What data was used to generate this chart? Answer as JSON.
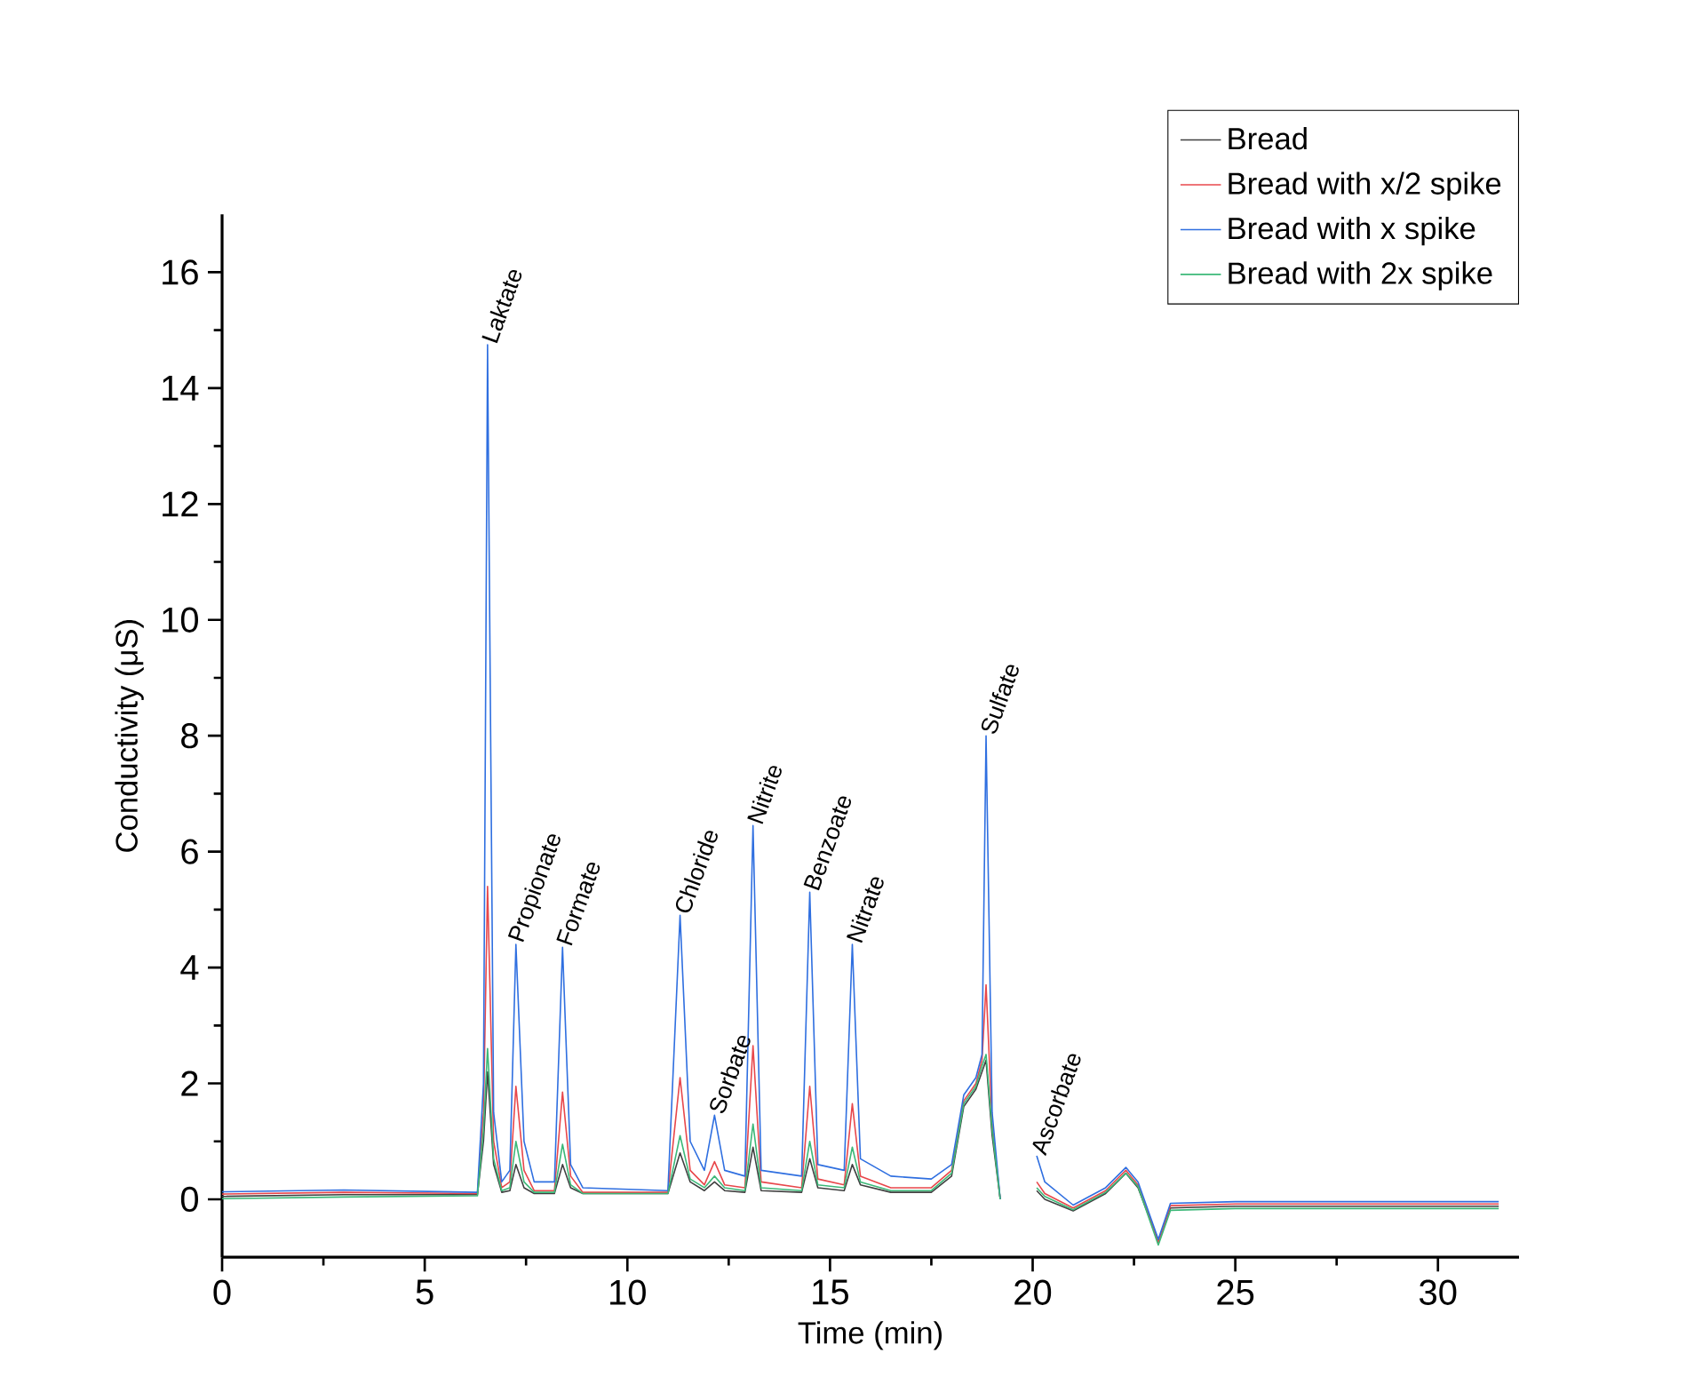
{
  "chart_data": {
    "type": "line",
    "xlabel": "Time (min)",
    "ylabel": "Conductivity (μS)",
    "x": [
      0,
      3,
      6.3,
      6.45,
      6.55,
      6.7,
      6.9,
      7.1,
      7.25,
      7.45,
      7.7,
      8.2,
      8.4,
      8.6,
      8.9,
      11.0,
      11.3,
      11.55,
      11.9,
      12.15,
      12.4,
      12.9,
      13.1,
      13.3,
      14.3,
      14.5,
      14.7,
      15.35,
      15.55,
      15.75,
      16.5,
      17.5,
      18.0,
      18.3,
      18.6,
      18.75,
      18.85,
      19.0,
      19.2,
      19.4,
      19.9,
      20.1,
      20.3,
      21.0,
      21.8,
      22.3,
      22.6,
      23.1,
      23.4,
      25,
      31.5
    ],
    "series": [
      {
        "name": "Bread",
        "color": "#404040",
        "values": [
          0.05,
          0.08,
          0.08,
          1.0,
          2.2,
          0.6,
          0.12,
          0.15,
          0.6,
          0.2,
          0.1,
          0.1,
          0.6,
          0.2,
          0.1,
          0.1,
          0.8,
          0.3,
          0.15,
          0.3,
          0.15,
          0.12,
          0.9,
          0.15,
          0.12,
          0.7,
          0.2,
          0.15,
          0.6,
          0.25,
          0.12,
          0.12,
          0.4,
          1.6,
          1.9,
          2.2,
          2.4,
          1.1,
          0.0,
          null,
          null,
          0.15,
          0.0,
          -0.2,
          0.1,
          0.45,
          0.2,
          -0.72,
          -0.15,
          -0.12,
          -0.12
        ]
      },
      {
        "name": "Bread with x/2 spike",
        "color": "#e8474b",
        "values": [
          0.09,
          0.12,
          0.1,
          1.5,
          5.4,
          1,
          0.2,
          0.3,
          1.95,
          0.5,
          0.15,
          0.15,
          1.85,
          0.4,
          0.12,
          0.12,
          2.1,
          0.5,
          0.25,
          0.65,
          0.25,
          0.2,
          2.65,
          0.3,
          0.2,
          1.95,
          0.35,
          0.25,
          1.65,
          0.4,
          0.2,
          0.2,
          0.5,
          1.7,
          2.0,
          2.4,
          3.7,
          1.3,
          0.0,
          null,
          null,
          0.3,
          0.1,
          -0.15,
          0.15,
          0.5,
          0.25,
          -0.75,
          -0.11,
          -0.08,
          -0.08
        ]
      },
      {
        "name": "Bread with x spike",
        "color": "#2f6fe0",
        "values": [
          0.13,
          0.16,
          0.12,
          2,
          14.75,
          1.5,
          0.3,
          0.5,
          4.4,
          1,
          0.3,
          0.3,
          4.35,
          0.6,
          0.2,
          0.15,
          4.9,
          1,
          0.5,
          1.45,
          0.5,
          0.4,
          6.45,
          0.5,
          0.4,
          5.3,
          0.6,
          0.5,
          4.4,
          0.7,
          0.4,
          0.35,
          0.6,
          1.8,
          2.1,
          2.5,
          8.0,
          1.5,
          0.0,
          null,
          null,
          0.75,
          0.3,
          -0.1,
          0.2,
          0.55,
          0.3,
          -0.69,
          -0.07,
          -0.04,
          -0.04
        ]
      },
      {
        "name": "Bread with 2x spike",
        "color": "#3cb878",
        "values": [
          0.01,
          0.04,
          0.06,
          1.2,
          2.6,
          0.7,
          0.15,
          0.2,
          1.0,
          0.3,
          0.12,
          0.12,
          0.95,
          0.25,
          0.1,
          0.1,
          1.1,
          0.35,
          0.2,
          0.4,
          0.2,
          0.15,
          1.3,
          0.2,
          0.15,
          1.0,
          0.25,
          0.2,
          0.9,
          0.3,
          0.15,
          0.15,
          0.45,
          1.65,
          1.95,
          2.3,
          2.5,
          1.2,
          0.0,
          null,
          null,
          0.2,
          0.05,
          -0.18,
          0.12,
          0.45,
          0.22,
          -0.79,
          -0.19,
          -0.16,
          -0.16
        ]
      }
    ],
    "xlim": [
      0,
      32
    ],
    "xticks": [
      0,
      5,
      10,
      15,
      20,
      25,
      30
    ],
    "ylim": [
      -1,
      17
    ],
    "yticks": [
      0,
      2,
      4,
      6,
      8,
      10,
      12,
      14,
      16
    ],
    "grid": false,
    "legend": "top right",
    "marker": "none",
    "line_style": "solid",
    "annotations": [
      {
        "text": "Laktate",
        "x": 6.55,
        "y": 14.75
      },
      {
        "text": "Propionate",
        "x": 7.25,
        "y": 4.4
      },
      {
        "text": "Formate",
        "x": 8.4,
        "y": 4.35
      },
      {
        "text": "Chloride",
        "x": 11.3,
        "y": 4.9
      },
      {
        "text": "Sorbate",
        "x": 12.15,
        "y": 1.45
      },
      {
        "text": "Nitrite",
        "x": 13.1,
        "y": 6.45
      },
      {
        "text": "Benzoate",
        "x": 14.5,
        "y": 5.3
      },
      {
        "text": "Nitrate",
        "x": 15.55,
        "y": 4.4
      },
      {
        "text": "Sulfate",
        "x": 18.85,
        "y": 8.0
      },
      {
        "text": "Ascorbate",
        "x": 20.1,
        "y": 0.75
      }
    ]
  }
}
